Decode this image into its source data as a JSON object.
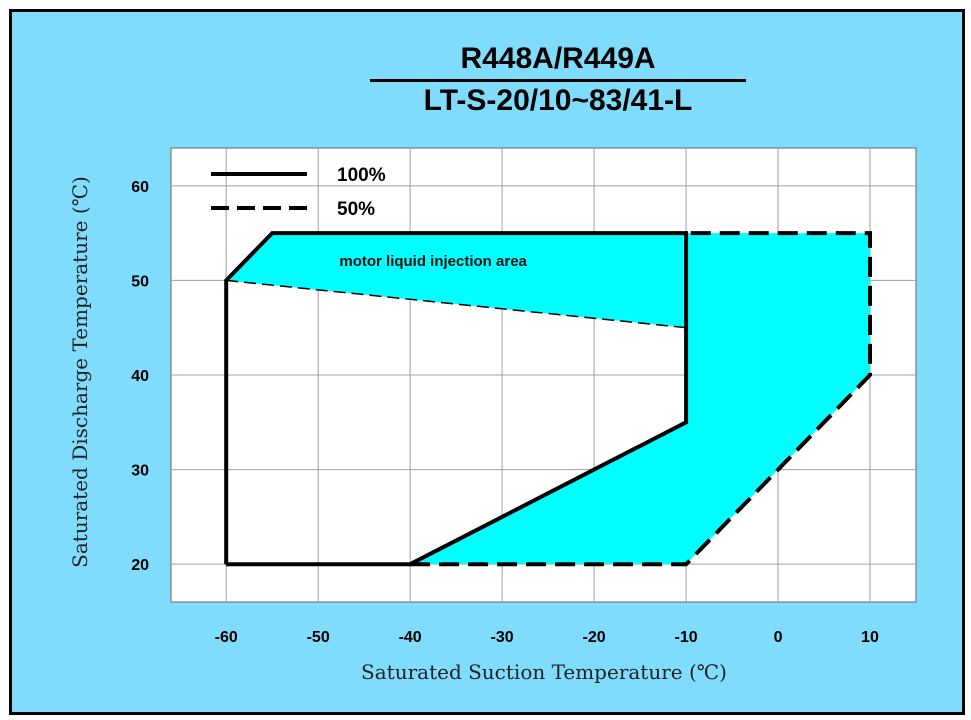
{
  "chart_data": {
    "type": "line",
    "title": "R448A/R449A",
    "subtitle": "LT-S-20/10~83/41-L",
    "xlabel": "Saturated Suction Temperature (℃)",
    "ylabel": "Saturated Discharge Temperature (℃)",
    "xlim": [
      -66,
      15
    ],
    "ylim": [
      16,
      64
    ],
    "x_ticks": [
      -60,
      -50,
      -40,
      -30,
      -20,
      -10,
      0,
      10
    ],
    "y_ticks": [
      20,
      30,
      40,
      50,
      60
    ],
    "x_tick_labels": [
      "-60",
      "-50",
      "-40",
      "-30",
      "-20",
      "-10",
      "0",
      "10"
    ],
    "y_tick_labels": [
      "20",
      "30",
      "40",
      "50",
      "60"
    ],
    "grid": true,
    "legend_position": "top-left",
    "series": [
      {
        "name": "100%",
        "line_style": "solid",
        "points": [
          [
            -60,
            20
          ],
          [
            -40,
            20
          ],
          [
            -10,
            35
          ],
          [
            -10,
            55
          ],
          [
            -55,
            55
          ],
          [
            -60,
            50
          ],
          [
            -60,
            20
          ]
        ]
      },
      {
        "name": "50%",
        "line_style": "dashed",
        "points": [
          [
            -40,
            20
          ],
          [
            -10,
            20
          ],
          [
            10,
            40
          ],
          [
            10,
            55
          ],
          [
            -10,
            55
          ]
        ]
      }
    ],
    "boundary_line": {
      "line_style": "dashed",
      "points": [
        [
          -60,
          50
        ],
        [
          -10,
          45
        ]
      ]
    },
    "shaded_regions": [
      {
        "label": "motor liquid injection area",
        "label_at": [
          -37.5,
          51.5
        ],
        "color": "#00ffff",
        "points": [
          [
            -60,
            50
          ],
          [
            -55,
            55
          ],
          [
            -10,
            55
          ],
          [
            -10,
            45
          ]
        ]
      },
      {
        "label": "",
        "color": "#00ffff",
        "points": [
          [
            -40,
            20
          ],
          [
            -10,
            20
          ],
          [
            10,
            40
          ],
          [
            10,
            55
          ],
          [
            -10,
            55
          ],
          [
            -10,
            35
          ]
        ]
      }
    ],
    "colors": {
      "frame_bg": "#80dcfc",
      "plot_bg": "#ffffff",
      "grid": "#a0a0a0",
      "fill": "#00ffff",
      "line": "#000000"
    }
  }
}
